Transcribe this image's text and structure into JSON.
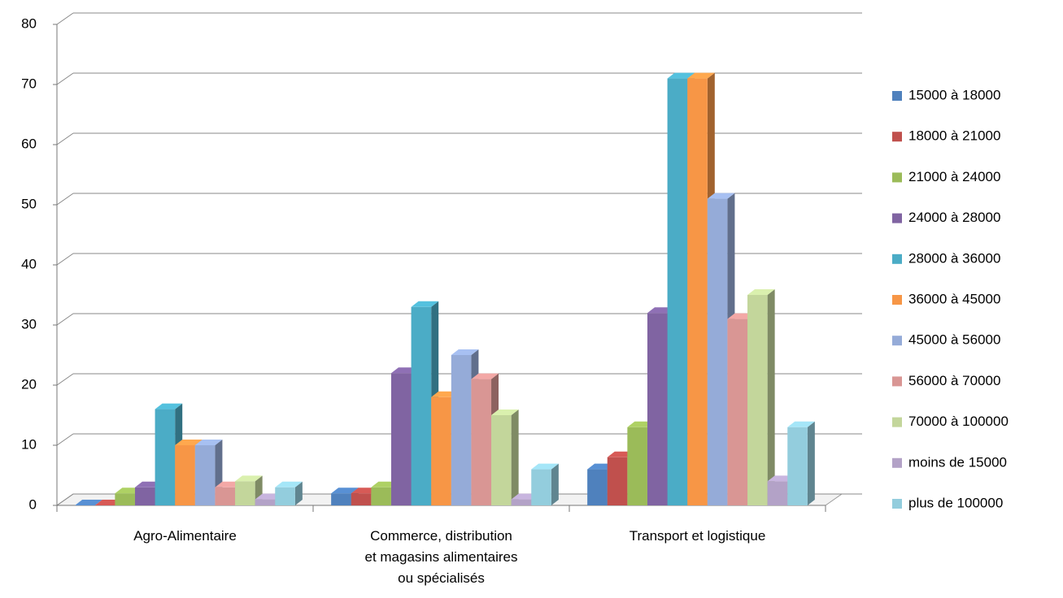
{
  "chart_data": {
    "type": "bar3d",
    "categories": [
      "Agro-Alimentaire",
      "Commerce, distribution\net magasins alimentaires\nou spécialisés",
      "Transport et logistique"
    ],
    "series": [
      {
        "name": "15000 à 18000",
        "color": "#4F81BD",
        "values": [
          0,
          2,
          6
        ]
      },
      {
        "name": "18000 à 21000",
        "color": "#C0504D",
        "values": [
          0,
          2,
          8
        ]
      },
      {
        "name": "21000 à 24000",
        "color": "#9BBB59",
        "values": [
          2,
          3,
          13
        ]
      },
      {
        "name": "24000 à 28000",
        "color": "#8064A2",
        "values": [
          3,
          22,
          32
        ]
      },
      {
        "name": "28000 à 36000",
        "color": "#4BACC6",
        "values": [
          16,
          33,
          71
        ]
      },
      {
        "name": "36000 à 45000",
        "color": "#F79646",
        "values": [
          10,
          18,
          71
        ]
      },
      {
        "name": "45000 à 56000",
        "color": "#95ABD8",
        "values": [
          10,
          25,
          51
        ]
      },
      {
        "name": "56000 à 70000",
        "color": "#D99694",
        "values": [
          3,
          21,
          31
        ]
      },
      {
        "name": "70000 à 100000",
        "color": "#C3D69B",
        "values": [
          4,
          15,
          35
        ]
      },
      {
        "name": "moins de 15000",
        "color": "#B3A2C7",
        "values": [
          1,
          1,
          4
        ]
      },
      {
        "name": "plus de 100000",
        "color": "#93CDDD",
        "values": [
          3,
          6,
          13
        ]
      }
    ],
    "ylim": [
      0,
      80
    ],
    "yticks": [
      0,
      10,
      20,
      30,
      40,
      50,
      60,
      70,
      80
    ],
    "grid": true,
    "legend": "right"
  }
}
